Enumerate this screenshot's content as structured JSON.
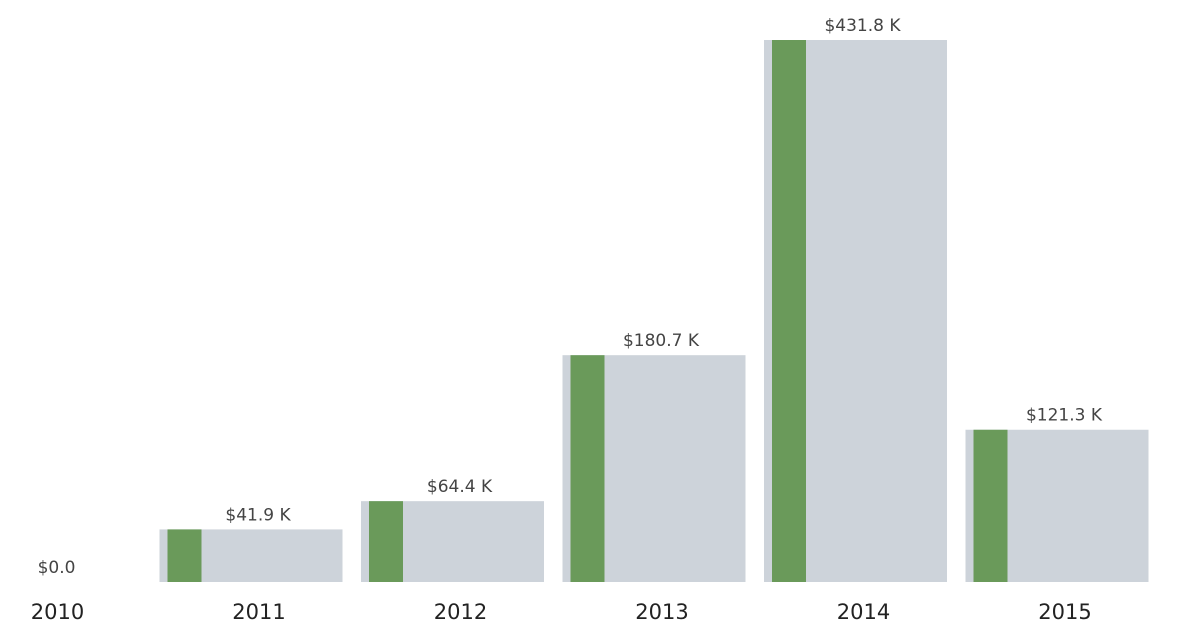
{
  "chart_data": {
    "type": "bar",
    "categories": [
      "2010",
      "2011",
      "2012",
      "2013",
      "2014",
      "2015"
    ],
    "values": [
      0,
      41.9,
      64.4,
      180.7,
      431.8,
      121.3
    ],
    "value_labels": [
      "$0.0",
      "$41.9 K",
      "$64.4 K",
      "$180.7 K",
      "$431.8 K",
      "$121.3 K"
    ],
    "color": "#cdd3da",
    "accent_color": "#6a9a5a"
  }
}
